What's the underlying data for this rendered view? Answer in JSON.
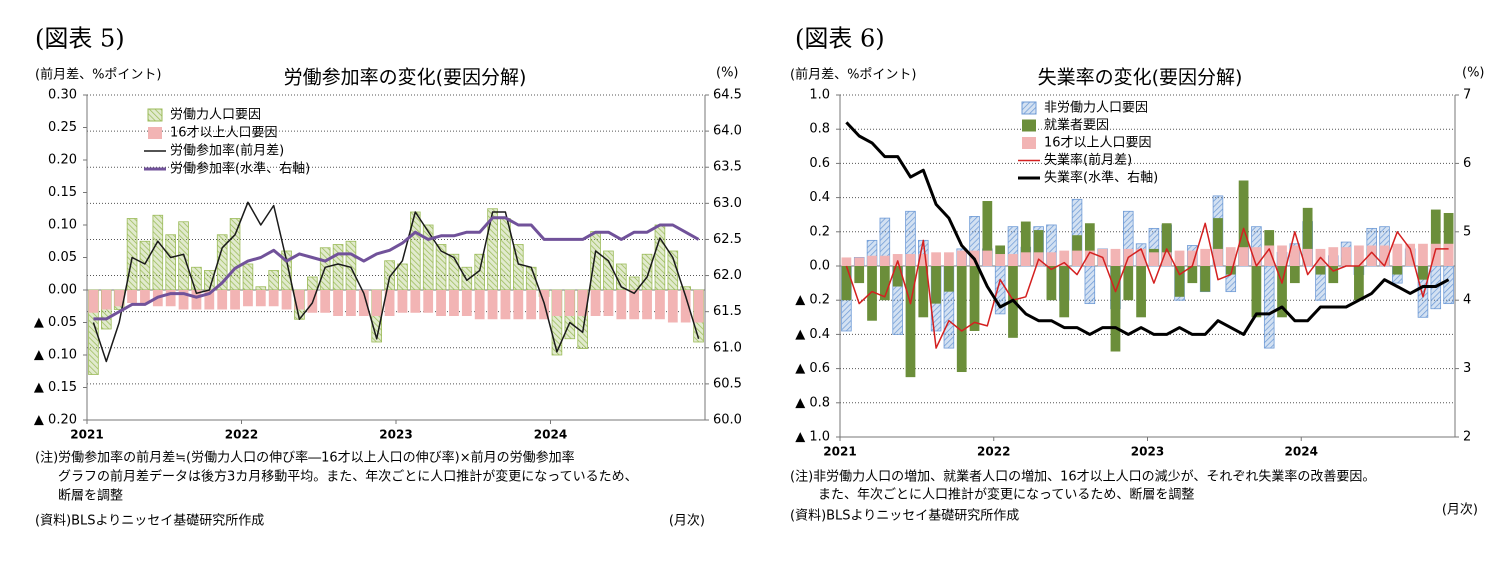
{
  "chart_data": [
    {
      "type": "bar",
      "figure_label": "(図表 5)",
      "title": "労働参加率の変化(要因分解)",
      "y_label": "(前月差、%ポイント)",
      "y2_label": "(%)",
      "x_unit": "(月次)",
      "notes": [
        "(注)労働参加率の前月差≒(労働力人口の伸び率―16才以上人口の伸び率)×前月の労働参加率",
        "グラフの前月差データは後方3カ月移動平均。また、年次ごとに人口推計が変更になっているため、",
        "断層を調整"
      ],
      "source": "(資料)BLSよりニッセイ基礎研究所作成",
      "categories": [
        "2021",
        null,
        null,
        null,
        null,
        null,
        null,
        null,
        null,
        null,
        null,
        null,
        "2022",
        null,
        null,
        null,
        null,
        null,
        null,
        null,
        null,
        null,
        null,
        null,
        "2023",
        null,
        null,
        null,
        null,
        null,
        null,
        null,
        null,
        null,
        null,
        null,
        "2024",
        null,
        null,
        null,
        null,
        null,
        null,
        null,
        null,
        null,
        null,
        null
      ],
      "ylim": [
        -0.2,
        0.3
      ],
      "yticks": [
        {
          "value": -0.2,
          "label": "▲ 0.20"
        },
        {
          "value": -0.15,
          "label": "▲ 0.15"
        },
        {
          "value": -0.1,
          "label": "▲ 0.10"
        },
        {
          "value": -0.05,
          "label": "▲ 0.05"
        },
        {
          "value": 0,
          "label": "0.00"
        },
        0.05,
        {
          "value": 0.1,
          "label": "0.10"
        },
        0.15,
        {
          "value": 0.2,
          "label": "0.20"
        },
        0.25,
        {
          "value": 0.3,
          "label": "0.30"
        }
      ],
      "y2lim": [
        60,
        64.5
      ],
      "y2ticks": [
        {
          "value": 60,
          "label": "60.0"
        },
        60.5,
        {
          "value": 61,
          "label": "61.0"
        },
        61.5,
        {
          "value": 62,
          "label": "62.0"
        },
        62.5,
        {
          "value": 63,
          "label": "63.0"
        },
        63.5,
        {
          "value": 64,
          "label": "64.0"
        },
        64.5
      ],
      "grid": "y2",
      "series": [
        {
          "name": "労働力人口要因",
          "type": "bar",
          "pattern": "hatch",
          "color": "#9bbb59",
          "values": [
            -0.13,
            -0.06,
            -0.03,
            0.11,
            0.075,
            0.115,
            0.085,
            0.105,
            0.035,
            0.03,
            0.085,
            0.11,
            0.04,
            0.005,
            0.03,
            0.06,
            -0.045,
            0.02,
            0.065,
            0.07,
            0.075,
            0.0,
            -0.08,
            0.045,
            0.04,
            0.12,
            0.1,
            0.07,
            0.055,
            0.035,
            0.055,
            0.125,
            0.11,
            0.07,
            0.035,
            -0.01,
            -0.1,
            -0.075,
            -0.09,
            0.09,
            0.06,
            0.04,
            0.02,
            0.055,
            0.1,
            0.06,
            0.005,
            -0.08
          ]
        },
        {
          "name": "16才以上人口要因",
          "type": "bar",
          "color": "#f2b4b4",
          "values": [
            -0.035,
            -0.03,
            -0.025,
            -0.02,
            -0.02,
            -0.025,
            -0.025,
            -0.03,
            -0.03,
            -0.03,
            -0.03,
            -0.03,
            -0.025,
            -0.025,
            -0.025,
            -0.03,
            -0.03,
            -0.035,
            -0.035,
            -0.04,
            -0.04,
            -0.04,
            -0.04,
            -0.04,
            -0.035,
            -0.035,
            -0.035,
            -0.04,
            -0.04,
            -0.04,
            -0.045,
            -0.045,
            -0.045,
            -0.045,
            -0.045,
            -0.045,
            -0.04,
            -0.04,
            -0.04,
            -0.04,
            -0.04,
            -0.045,
            -0.045,
            -0.045,
            -0.045,
            -0.05,
            -0.05,
            -0.05
          ]
        },
        {
          "name": "労働参加率(前月差)",
          "type": "line",
          "color": "#1a1a1a",
          "values": [
            -0.05,
            -0.11,
            -0.05,
            0.05,
            0.04,
            0.075,
            0.05,
            0.055,
            -0.005,
            0.0,
            0.065,
            0.085,
            0.135,
            0.1,
            0.13,
            0.045,
            -0.045,
            -0.02,
            0.035,
            0.04,
            0.035,
            -0.005,
            -0.075,
            0.02,
            0.045,
            0.12,
            0.09,
            0.06,
            0.05,
            0.015,
            0.03,
            0.12,
            0.12,
            0.04,
            0.035,
            -0.02,
            -0.095,
            -0.05,
            -0.065,
            0.06,
            0.045,
            0.005,
            -0.005,
            0.02,
            0.08,
            0.05,
            -0.01,
            -0.075
          ]
        },
        {
          "name": "労働参加率(水準、右軸)",
          "type": "line",
          "axis": "y2",
          "color": "#71529a",
          "values": [
            61.4,
            61.4,
            61.5,
            61.6,
            61.6,
            61.7,
            61.75,
            61.75,
            61.7,
            61.75,
            61.9,
            62.1,
            62.2,
            62.25,
            62.35,
            62.2,
            62.3,
            62.25,
            62.2,
            62.3,
            62.3,
            62.2,
            62.3,
            62.35,
            62.45,
            62.6,
            62.5,
            62.55,
            62.55,
            62.6,
            62.6,
            62.8,
            62.8,
            62.7,
            62.7,
            62.5,
            62.5,
            62.5,
            62.5,
            62.6,
            62.6,
            62.5,
            62.6,
            62.6,
            62.7,
            62.7,
            62.6,
            62.5
          ]
        }
      ]
    },
    {
      "type": "bar",
      "figure_label": "(図表 6)",
      "title": "失業率の変化(要因分解)",
      "y_label": "(前月差、%ポイント)",
      "y2_label": "(%)",
      "x_unit": "(月次)",
      "notes": [
        "(注)非労働力人口の増加、就業者人口の増加、16才以上人口の減少が、それぞれ失業率の改善要因。",
        "また、年次ごとに人口推計が変更になっているため、断層を調整"
      ],
      "source": "(資料)BLSよりニッセイ基礎研究所作成",
      "categories": [
        "2021",
        null,
        null,
        null,
        null,
        null,
        null,
        null,
        null,
        null,
        null,
        null,
        "2022",
        null,
        null,
        null,
        null,
        null,
        null,
        null,
        null,
        null,
        null,
        null,
        "2023",
        null,
        null,
        null,
        null,
        null,
        null,
        null,
        null,
        null,
        null,
        null,
        "2024",
        null,
        null,
        null,
        null,
        null,
        null,
        null,
        null,
        null,
        null,
        null
      ],
      "ylim": [
        -1.0,
        1.0
      ],
      "yticks": [
        {
          "value": -1.0,
          "label": "▲ 1.0"
        },
        {
          "value": -0.8,
          "label": "▲ 0.8"
        },
        {
          "value": -0.6,
          "label": "▲ 0.6"
        },
        {
          "value": -0.4,
          "label": "▲ 0.4"
        },
        {
          "value": -0.2,
          "label": "▲ 0.2"
        },
        {
          "value": 0,
          "label": "0.0"
        },
        0.2,
        0.4,
        0.6,
        0.8,
        {
          "value": 1.0,
          "label": "1.0"
        }
      ],
      "y2lim": [
        2,
        7
      ],
      "y2ticks": [
        2,
        3,
        4,
        5,
        6,
        7
      ],
      "grid": "y",
      "series": [
        {
          "name": "非労働力人口要因",
          "type": "bar",
          "pattern": "hatch",
          "color": "#6f9bd6",
          "values": [
            -0.38,
            0.05,
            0.15,
            0.28,
            -0.4,
            0.32,
            0.15,
            -0.38,
            -0.48,
            0.1,
            0.29,
            0.1,
            -0.28,
            0.23,
            0.11,
            0.23,
            0.24,
            -0.2,
            0.39,
            -0.22,
            0.1,
            -0.25,
            0.32,
            0.13,
            0.22,
            0.24,
            -0.2,
            0.12,
            -0.15,
            0.41,
            -0.15,
            0.12,
            0.23,
            -0.48,
            0.08,
            0.13,
            0.26,
            -0.2,
            0.06,
            0.14,
            -0.05,
            0.22,
            0.23,
            -0.1,
            0.1,
            -0.3,
            -0.25,
            -0.22
          ]
        },
        {
          "name": "就業者要因",
          "type": "bar",
          "color": "#6b8e3a",
          "values": [
            -0.2,
            -0.1,
            -0.32,
            -0.2,
            -0.12,
            -0.65,
            -0.3,
            -0.22,
            -0.15,
            -0.62,
            -0.38,
            0.38,
            0.12,
            -0.42,
            0.26,
            0.21,
            -0.2,
            -0.3,
            0.18,
            0.25,
            0.08,
            -0.5,
            -0.2,
            -0.3,
            0.1,
            0.25,
            -0.18,
            -0.1,
            -0.15,
            0.28,
            -0.05,
            0.5,
            -0.3,
            0.21,
            -0.3,
            -0.1,
            0.34,
            -0.05,
            -0.1,
            0.05,
            -0.2,
            0.1,
            0.0,
            -0.05,
            0.05,
            -0.08,
            0.33,
            0.31
          ]
        },
        {
          "name": "16才以上人口要因",
          "type": "bar",
          "color": "#f2b4b4",
          "values": [
            0.05,
            0.05,
            0.06,
            0.06,
            0.07,
            0.07,
            0.07,
            0.08,
            0.08,
            0.09,
            0.09,
            0.09,
            0.07,
            0.07,
            0.08,
            0.08,
            0.08,
            0.09,
            0.09,
            0.09,
            0.1,
            0.1,
            0.1,
            0.1,
            0.08,
            0.08,
            0.09,
            0.09,
            0.1,
            0.1,
            0.11,
            0.11,
            0.11,
            0.12,
            0.12,
            0.12,
            0.1,
            0.1,
            0.11,
            0.11,
            0.12,
            0.12,
            0.12,
            0.13,
            0.13,
            0.13,
            0.13,
            0.13
          ]
        },
        {
          "name": "失業率(前月差)",
          "type": "line",
          "color": "#d42020",
          "values": [
            0.0,
            -0.22,
            -0.15,
            -0.18,
            0.03,
            -0.22,
            0.15,
            -0.48,
            -0.32,
            -0.38,
            -0.33,
            -0.35,
            -0.08,
            -0.2,
            -0.18,
            0.04,
            -0.02,
            0.02,
            -0.05,
            0.08,
            0.05,
            -0.15,
            0.05,
            0.1,
            -0.1,
            0.1,
            -0.05,
            0.0,
            0.25,
            -0.08,
            -0.05,
            0.22,
            0.0,
            0.1,
            -0.1,
            0.2,
            -0.05,
            0.05,
            -0.03,
            0.0,
            0.0,
            0.08,
            0.0,
            0.2,
            0.1,
            -0.18,
            0.1,
            0.1
          ]
        },
        {
          "name": "失業率(水準、右軸)",
          "type": "line",
          "axis": "y2",
          "color": "#000000",
          "values": [
            6.6,
            6.4,
            6.3,
            6.1,
            6.1,
            5.8,
            5.9,
            5.4,
            5.2,
            4.8,
            4.6,
            4.2,
            3.9,
            4.0,
            3.8,
            3.7,
            3.7,
            3.6,
            3.6,
            3.5,
            3.6,
            3.6,
            3.5,
            3.6,
            3.5,
            3.5,
            3.6,
            3.5,
            3.5,
            3.7,
            3.6,
            3.5,
            3.8,
            3.8,
            3.9,
            3.7,
            3.7,
            3.9,
            3.9,
            3.9,
            4.0,
            4.1,
            4.3,
            4.2,
            4.1,
            4.2,
            4.2,
            4.3
          ]
        }
      ]
    }
  ]
}
